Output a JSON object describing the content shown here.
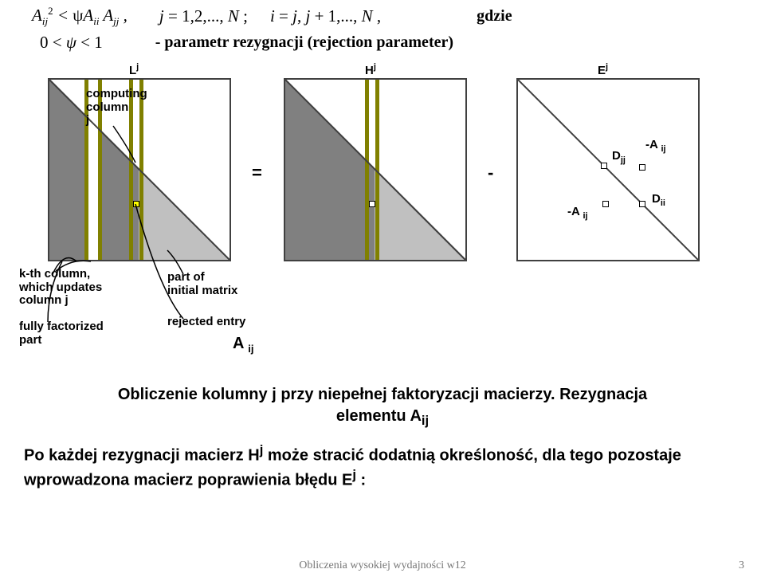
{
  "formula": {
    "ineq_html": "A<span class='sub'>ij</span><span class='sup'>2</span> &lt; <span class='nrm'>&psi;</span>A<span class='sub'>ii</span> A<span class='sub'>jj</span> ,",
    "j_range_html": "j <span class='nrm'>= 1,2,...,</span> N <span class='nrm'>;</span>",
    "i_range_html": "i <span class='nrm'>=</span> j<span class='nrm'>,</span> j <span class='nrm'>+ 1,...,</span> N <span class='nrm'>,</span>",
    "gdzie": "gdzie",
    "psi_bound_html": "0 &lt; <i>&psi;</i> &lt; 1",
    "psi_desc": "- parametr rezygnacji (rejection parameter)"
  },
  "figure": {
    "L_label": "L",
    "H_label": "H",
    "E_label": "E",
    "sup_j": "j",
    "computing": "computing\ncolumn\nj",
    "kth": "k-th column,\nwhich updates\ncolumn j",
    "fully": "fully factorized\npart",
    "partof": "part of\ninitial matrix",
    "rejected": "rejected entry",
    "Aij": "A",
    "Aij_sub": "ij",
    "minusA": "-A",
    "D_label": "D",
    "D_sub_jj": "jj",
    "D_sub_ii": "ii",
    "eq": "=",
    "minus": "-",
    "colors": {
      "dark_fill": "#808080",
      "light_fill": "#c0c0c0",
      "olive": "#808000",
      "yellow": "#ffff00",
      "white": "#ffffff",
      "black": "#000000"
    }
  },
  "caption": {
    "line1": "Obliczenie kolumny j przy niepełnej faktoryzacji macierzy. Rezygnacja",
    "line2_html": "elementu A<sub>ij</sub>"
  },
  "para_html": "Po każdej rezygnacji macierz H<sup>j</sup> może stracić dodatnią określoność, dla tego pozostaje wprowadzona macierz poprawienia błędu E<sup>j</sup> :",
  "footer": {
    "text": "Obliczenia wysokiej wydajności w12",
    "page": "3"
  }
}
